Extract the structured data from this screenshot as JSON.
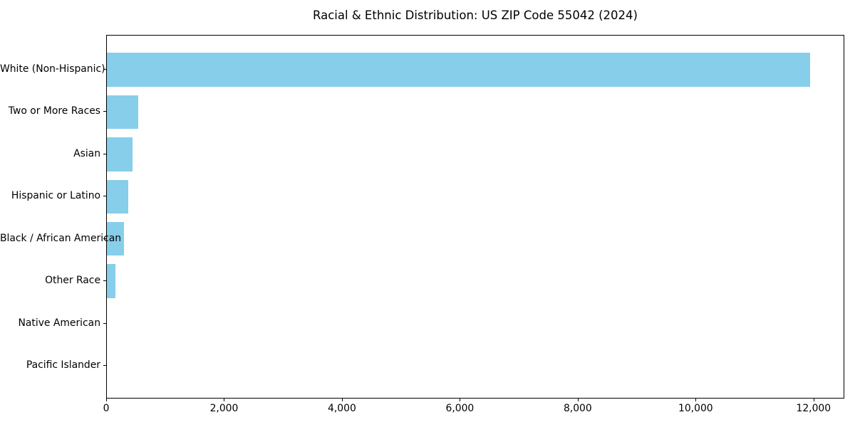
{
  "chart_data": {
    "type": "bar",
    "orientation": "horizontal",
    "title": "Racial & Ethnic Distribution: US ZIP Code 55042 (2024)",
    "categories": [
      "White (Non-Hispanic)",
      "Two or More Races",
      "Asian",
      "Hispanic or Latino",
      "Black / African American",
      "Other Race",
      "Native American",
      "Pacific Islander"
    ],
    "values": [
      11930,
      535,
      430,
      365,
      295,
      140,
      0,
      0
    ],
    "xlabel": "",
    "ylabel": "",
    "xlim": [
      0,
      12510
    ],
    "xticks": [
      0,
      2000,
      4000,
      6000,
      8000,
      10000,
      12000
    ],
    "xtick_labels": [
      "0",
      "2,000",
      "4,000",
      "6,000",
      "8,000",
      "10,000",
      "12,000"
    ],
    "grid": false,
    "legend": null,
    "bar_color": "#87CEEB",
    "text_color": "#000000",
    "frame_color": "#000000",
    "background_color": "#FFFFFF"
  }
}
